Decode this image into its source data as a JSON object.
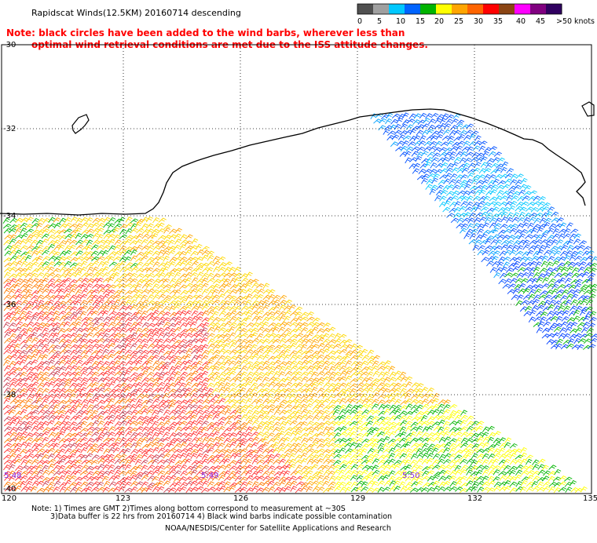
{
  "header": {
    "title": "Rapidscat Winds(12.5KM) 20160714 descending",
    "note_line1": "Note: black circles have been added to the wind barbs, wherever less than",
    "note_line2": "optimal wind retrieval conditions are met due to the ISS attitude changes."
  },
  "legend": {
    "unit": "knots",
    "labels": [
      "0",
      "5",
      "10",
      "15",
      "20",
      "25",
      "30",
      "35",
      "40",
      "45",
      ">50"
    ],
    "colors": [
      "#505050",
      "#a0a0a0",
      "#00c8ff",
      "#0064ff",
      "#00b400",
      "#ffff00",
      "#ffa500",
      "#ff6400",
      "#ff0000",
      "#8b4513",
      "#ff00ff",
      "#800080",
      "#300060"
    ]
  },
  "map": {
    "lat_labels": [
      "-30",
      "-32",
      "-34",
      "-36",
      "-38",
      "-40"
    ],
    "lon_labels": [
      "120",
      "123",
      "126",
      "129",
      "132",
      "135"
    ],
    "time_labels": [
      "5:48",
      "5:49",
      "5:50"
    ]
  },
  "footer": {
    "line1": "Note: 1) Times are GMT 2)Times along bottom correspond to measurement at ~30S",
    "line2": "3)Data buffer is 22 hrs from 20160714 4) Black wind barbs indicate possible contamination",
    "line3": "NOAA/NESDIS/Center for Satellite Applications and Research"
  }
}
